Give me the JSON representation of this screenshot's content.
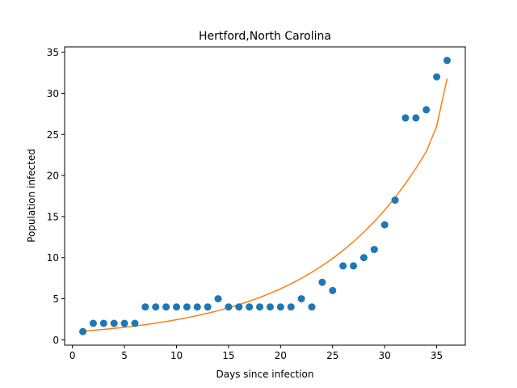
{
  "chart_data": {
    "type": "scatter",
    "title": "Hertford,North Carolina",
    "xlabel": "Days since infection",
    "ylabel": "Population infected",
    "xlim": [
      -0.75,
      37.75
    ],
    "ylim": [
      -0.65,
      35.65
    ],
    "xticks": [
      0,
      5,
      10,
      15,
      20,
      25,
      30,
      35
    ],
    "yticks": [
      0,
      5,
      10,
      15,
      20,
      25,
      30,
      35
    ],
    "grid": false,
    "series": [
      {
        "kind": "scatter",
        "color": "#1f77b4",
        "x": [
          1,
          2,
          3,
          4,
          5,
          6,
          7,
          8,
          9,
          10,
          11,
          12,
          13,
          14,
          15,
          16,
          17,
          18,
          19,
          20,
          21,
          22,
          23,
          24,
          25,
          26,
          27,
          28,
          29,
          30,
          31,
          32,
          33,
          34,
          35,
          36
        ],
        "y": [
          1,
          2,
          2,
          2,
          2,
          2,
          4,
          4,
          4,
          4,
          4,
          4,
          4,
          5,
          4,
          4,
          4,
          4,
          4,
          4,
          4,
          5,
          4,
          7,
          6,
          9,
          9,
          10,
          11,
          14,
          17,
          27,
          27,
          28,
          32,
          34
        ]
      },
      {
        "kind": "line",
        "color": "#ff7f0e",
        "fit": "exponential",
        "x": [
          1,
          2,
          3,
          4,
          5,
          6,
          7,
          8,
          9,
          10,
          11,
          12,
          13,
          14,
          15,
          16,
          17,
          18,
          19,
          20,
          21,
          22,
          23,
          24,
          25,
          26,
          27,
          28,
          29,
          30,
          31,
          32,
          33,
          34,
          35,
          36
        ],
        "y": [
          1.05,
          1.16,
          1.27,
          1.39,
          1.53,
          1.68,
          1.85,
          2.03,
          2.23,
          2.45,
          2.69,
          2.95,
          3.24,
          3.55,
          3.9,
          4.28,
          4.7,
          5.16,
          5.66,
          6.21,
          6.82,
          7.49,
          8.22,
          9.02,
          9.9,
          10.87,
          11.93,
          13.1,
          14.37,
          15.78,
          17.32,
          19.01,
          20.87,
          22.9,
          26.0,
          31.8
        ]
      }
    ]
  }
}
